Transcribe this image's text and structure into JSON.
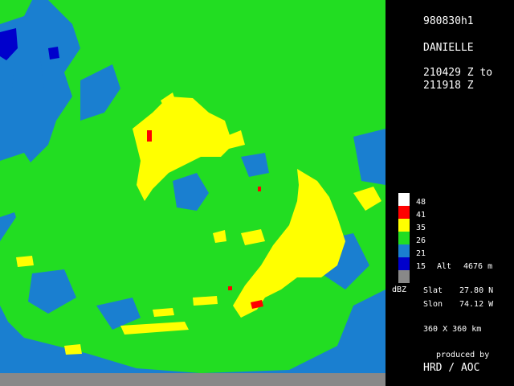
{
  "flight_id": "980830h1",
  "storm_name": "DANIELLE",
  "time_start": "210429 Z to",
  "time_end": "211918 Z",
  "legend": {
    "unit": "dBZ",
    "levels": [
      {
        "label": "48",
        "color": "#ffffff"
      },
      {
        "label": "41",
        "color": "#ff0000"
      },
      {
        "label": "35",
        "color": "#ffff00"
      },
      {
        "label": "26",
        "color": "#22dd22"
      },
      {
        "label": "21",
        "color": "#1a7fd0"
      },
      {
        "label": "15",
        "color": "#0000cc"
      },
      {
        "label": "",
        "color": "#888888"
      }
    ]
  },
  "altitude": {
    "label": "Alt",
    "value": "4676 m"
  },
  "slat": {
    "label": "Slat",
    "value": "27.80 N"
  },
  "slon": {
    "label": "Slon",
    "value": "74.12 W"
  },
  "domain_size": "360 X 360 km",
  "credit_line1": "produced by",
  "credit_line2": "HRD / AOC"
}
